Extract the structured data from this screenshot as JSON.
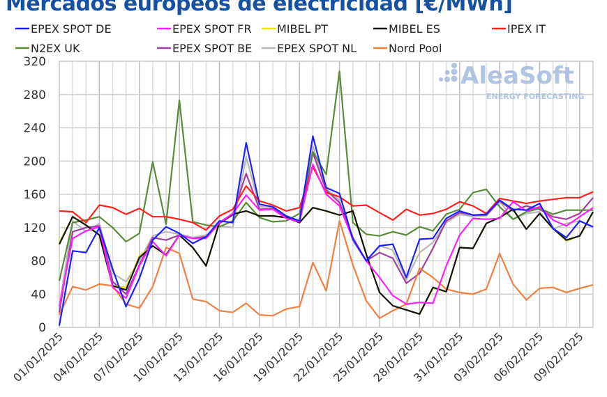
{
  "chart_data": {
    "type": "line",
    "title": "Mercados europeos de electricidad [€/MWh]",
    "xlabel": "",
    "ylabel": "",
    "ylim": [
      0,
      320
    ],
    "yticks": [
      0,
      40,
      80,
      120,
      160,
      200,
      240,
      280,
      320
    ],
    "grid": true,
    "legend_position": "top",
    "x": [
      "01/01/2025",
      "02/01/2025",
      "03/01/2025",
      "04/01/2025",
      "05/01/2025",
      "06/01/2025",
      "07/01/2025",
      "08/01/2025",
      "09/01/2025",
      "10/01/2025",
      "11/01/2025",
      "12/01/2025",
      "13/01/2025",
      "14/01/2025",
      "15/01/2025",
      "16/01/2025",
      "17/01/2025",
      "18/01/2025",
      "19/01/2025",
      "20/01/2025",
      "21/01/2025",
      "22/01/2025",
      "23/01/2025",
      "24/01/2025",
      "25/01/2025",
      "26/01/2025",
      "27/01/2025",
      "28/01/2025",
      "29/01/2025",
      "30/01/2025",
      "31/01/2025",
      "01/02/2025",
      "02/02/2025",
      "03/02/2025",
      "04/02/2025",
      "05/02/2025",
      "06/02/2025",
      "07/02/2025",
      "08/02/2025",
      "09/02/2025",
      "10/02/2025"
    ],
    "xtick_labels": [
      "01/01/2025",
      "04/01/2025",
      "07/01/2025",
      "10/01/2025",
      "13/01/2025",
      "16/01/2025",
      "19/01/2025",
      "22/01/2025",
      "25/01/2025",
      "28/01/2025",
      "31/01/2025",
      "03/02/2025",
      "06/02/2025",
      "09/02/2025"
    ],
    "series": [
      {
        "name": "EPEX SPOT DE",
        "color": "#1f1fff",
        "values": [
          2,
          92,
          90,
          120,
          70,
          25,
          59,
          105,
          121,
          113,
          101,
          109,
          128,
          126,
          222,
          148,
          145,
          134,
          128,
          230,
          168,
          161,
          106,
          80,
          98,
          100,
          60,
          106,
          107,
          131,
          140,
          135,
          136,
          153,
          142,
          141,
          149,
          119,
          108,
          128,
          121
        ]
      },
      {
        "name": "EPEX SPOT FR",
        "color": "#ff1fff",
        "values": [
          25,
          107,
          116,
          121,
          48,
          35,
          74,
          103,
          86,
          111,
          107,
          107,
          126,
          137,
          159,
          141,
          142,
          131,
          127,
          196,
          160,
          146,
          106,
          80,
          60,
          38,
          28,
          30,
          29,
          74,
          111,
          131,
          130,
          131,
          151,
          140,
          145,
          129,
          122,
          133,
          144
        ]
      },
      {
        "name": "MIBEL PT",
        "color": "#e8e800",
        "values": [
          102,
          133,
          123,
          111,
          50,
          48,
          86,
          98,
          87,
          111,
          96,
          74,
          126,
          136,
          140,
          134,
          134,
          132,
          126,
          144,
          140,
          135,
          140,
          88,
          42,
          26,
          21,
          16,
          47,
          43,
          96,
          95,
          125,
          132,
          142,
          118,
          137,
          119,
          104,
          110,
          139
        ]
      },
      {
        "name": "MIBEL ES",
        "color": "#111111",
        "values": [
          100,
          133,
          123,
          111,
          50,
          45,
          84,
          98,
          87,
          111,
          96,
          74,
          126,
          136,
          140,
          134,
          134,
          132,
          126,
          144,
          140,
          135,
          140,
          88,
          42,
          26,
          21,
          16,
          48,
          43,
          96,
          95,
          125,
          132,
          142,
          118,
          137,
          119,
          105,
          110,
          139
        ]
      },
      {
        "name": "IPEX IT",
        "color": "#ff2020",
        "values": [
          140,
          139,
          126,
          147,
          144,
          136,
          143,
          133,
          133,
          130,
          126,
          117,
          134,
          142,
          170,
          152,
          147,
          140,
          144,
          193,
          162,
          157,
          146,
          147,
          138,
          129,
          142,
          135,
          137,
          142,
          151,
          146,
          137,
          155,
          152,
          149,
          152,
          154,
          156,
          156,
          163
        ]
      },
      {
        "name": "N2EX UK",
        "color": "#5a8a3a",
        "values": [
          56,
          126,
          129,
          133,
          120,
          103,
          113,
          199,
          124,
          273,
          127,
          123,
          121,
          128,
          150,
          132,
          127,
          128,
          137,
          211,
          184,
          308,
          126,
          112,
          110,
          115,
          111,
          121,
          116,
          136,
          142,
          162,
          166,
          145,
          130,
          139,
          143,
          136,
          141,
          141,
          141
        ]
      },
      {
        "name": "EPEX SPOT BE",
        "color": "#a040a0",
        "values": [
          18,
          115,
          120,
          122,
          55,
          40,
          75,
          108,
          105,
          111,
          107,
          109,
          125,
          135,
          185,
          142,
          143,
          133,
          127,
          210,
          165,
          150,
          108,
          80,
          90,
          83,
          53,
          65,
          95,
          128,
          138,
          135,
          135,
          152,
          140,
          146,
          142,
          133,
          130,
          137,
          156
        ]
      },
      {
        "name": "EPEX SPOT NL",
        "color": "#b8b8b8",
        "values": [
          25,
          128,
          115,
          125,
          65,
          55,
          80,
          110,
          115,
          112,
          108,
          111,
          122,
          120,
          205,
          145,
          145,
          134,
          128,
          218,
          167,
          153,
          104,
          80,
          98,
          93,
          57,
          90,
          102,
          126,
          136,
          133,
          134,
          152,
          130,
          137,
          139,
          118,
          125,
          128,
          120
        ]
      },
      {
        "name": "Nord Pool",
        "color": "#f08040",
        "values": [
          15,
          49,
          45,
          52,
          50,
          28,
          23,
          49,
          96,
          89,
          34,
          31,
          20,
          18,
          29,
          15,
          14,
          22,
          25,
          78,
          44,
          128,
          75,
          32,
          11,
          20,
          28,
          71,
          60,
          46,
          42,
          40,
          46,
          89,
          52,
          33,
          47,
          48,
          42,
          47,
          51
        ]
      }
    ]
  },
  "logo": {
    "name": "AleaSoft",
    "tagline": "ENERGY FORECASTING",
    "color": "#a9bfe0"
  }
}
